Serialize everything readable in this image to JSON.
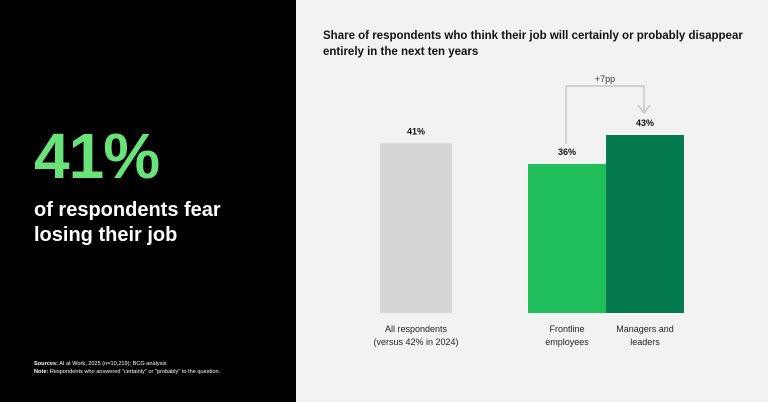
{
  "left": {
    "big_stat": "41%",
    "subtitle": "of respondents fear losing their job",
    "sources_label": "Sources:",
    "sources_text": "AI at Work, 2025 (n=10,219); BCG analysis",
    "note_label": "Note:",
    "note_text": "Respondents who answered \"certainly\" or \"probably\" to the question."
  },
  "colors": {
    "left_bg": "#000000",
    "accent_green": "#69e27a",
    "bar_all": "#d6d6d6",
    "bar_frontline": "#21bf5b",
    "bar_managers": "#067a4f",
    "right_bg": "#f2f2f2"
  },
  "chart_data": {
    "type": "bar",
    "title": "Share of respondents who think their job will certainly or probably disappear entirely in the next ten years",
    "categories": [
      "All respondents (versus 42% in 2024)",
      "Frontline employees",
      "Managers and leaders"
    ],
    "category_lines": [
      [
        "All respondents",
        "(versus 42% in 2024)"
      ],
      [
        "Frontline",
        "employees"
      ],
      [
        "Managers and",
        "leaders"
      ]
    ],
    "values": [
      41,
      36,
      43
    ],
    "value_labels": [
      "41%",
      "36%",
      "43%"
    ],
    "unit": "%",
    "annotation": "+7pp",
    "ylim": [
      0,
      50
    ],
    "grid": false,
    "legend": "none"
  }
}
